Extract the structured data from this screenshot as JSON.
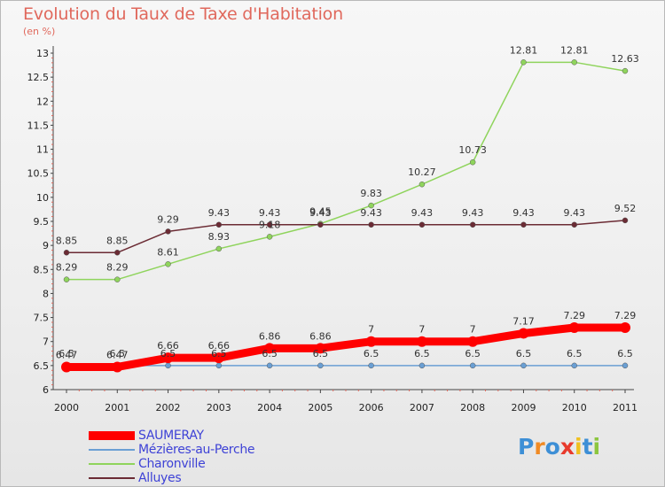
{
  "header": {
    "title": "Evolution du Taux de Taxe d'Habitation",
    "subtitle": "(en %)"
  },
  "chart_data": {
    "type": "line",
    "title": "Evolution du Taux de Taxe d'Habitation",
    "subtitle": "(en %)",
    "xlabel": "",
    "ylabel": "",
    "x": [
      "2000",
      "2001",
      "2002",
      "2003",
      "2004",
      "2005",
      "2006",
      "2007",
      "2008",
      "2009",
      "2010",
      "2011"
    ],
    "ylim": [
      6,
      13
    ],
    "yticks": [
      "6",
      "6.5",
      "7",
      "7.5",
      "8",
      "8.5",
      "9",
      "9.5",
      "10",
      "10.5",
      "11",
      "11.5",
      "12",
      "12.5",
      "13"
    ],
    "grid": false,
    "legend_position": "bottom-left",
    "series": [
      {
        "name": "SAUMERAY",
        "color": "#ff0000",
        "values": [
          6.47,
          6.47,
          6.66,
          6.66,
          6.86,
          6.86,
          7,
          7,
          7,
          7.17,
          7.29,
          7.29
        ],
        "labels": [
          "6.47",
          "6.47",
          "6.66",
          "6.66",
          "6.86",
          "6.86",
          "7",
          "7",
          "7",
          "7.17",
          "7.29",
          "7.29"
        ]
      },
      {
        "name": "Mézières-au-Perche",
        "color": "#6a9fd4",
        "values": [
          6.5,
          6.5,
          6.5,
          6.5,
          6.5,
          6.5,
          6.5,
          6.5,
          6.5,
          6.5,
          6.5,
          6.5
        ],
        "labels": [
          "6.5",
          "6.5",
          "6.5",
          "6.5",
          "6.5",
          "6.5",
          "6.5",
          "6.5",
          "6.5",
          "6.5",
          "6.5",
          "6.5"
        ]
      },
      {
        "name": "Charonville",
        "color": "#8fd45c",
        "values": [
          8.29,
          8.29,
          8.61,
          8.93,
          9.18,
          9.45,
          9.83,
          10.27,
          10.73,
          12.81,
          12.81,
          12.63
        ],
        "labels": [
          "8.29",
          "8.29",
          "8.61",
          "8.93",
          "9.18",
          "9.45",
          "9.83",
          "10.27",
          "10.73",
          "12.81",
          "12.81",
          "12.63"
        ]
      },
      {
        "name": "Alluyes",
        "color": "#6b2b34",
        "values": [
          8.85,
          8.85,
          9.29,
          9.43,
          9.43,
          9.43,
          9.43,
          9.43,
          9.43,
          9.43,
          9.43,
          9.52
        ],
        "labels": [
          "8.85",
          "8.85",
          "9.29",
          "9.43",
          "9.43",
          "9.43",
          "9.43",
          "9.43",
          "9.43",
          "9.43",
          "9.43",
          "9.52"
        ]
      }
    ]
  },
  "legend": {
    "items": [
      {
        "label": "SAUMERAY",
        "color": "#ff0000"
      },
      {
        "label": "Mézières-au-Perche",
        "color": "#6a9fd4"
      },
      {
        "label": "Charonville",
        "color": "#8fd45c"
      },
      {
        "label": "Alluyes",
        "color": "#6b2b34"
      }
    ]
  },
  "logo": {
    "text": "Proxiti",
    "letters": [
      "P",
      "r",
      "o",
      "x",
      "i",
      "t",
      "i"
    ],
    "colors": [
      "#3d8fd6",
      "#f08a24",
      "#3d8fd6",
      "#e83a2c",
      "#f0c020",
      "#3d8fd6",
      "#8cc63f"
    ]
  }
}
